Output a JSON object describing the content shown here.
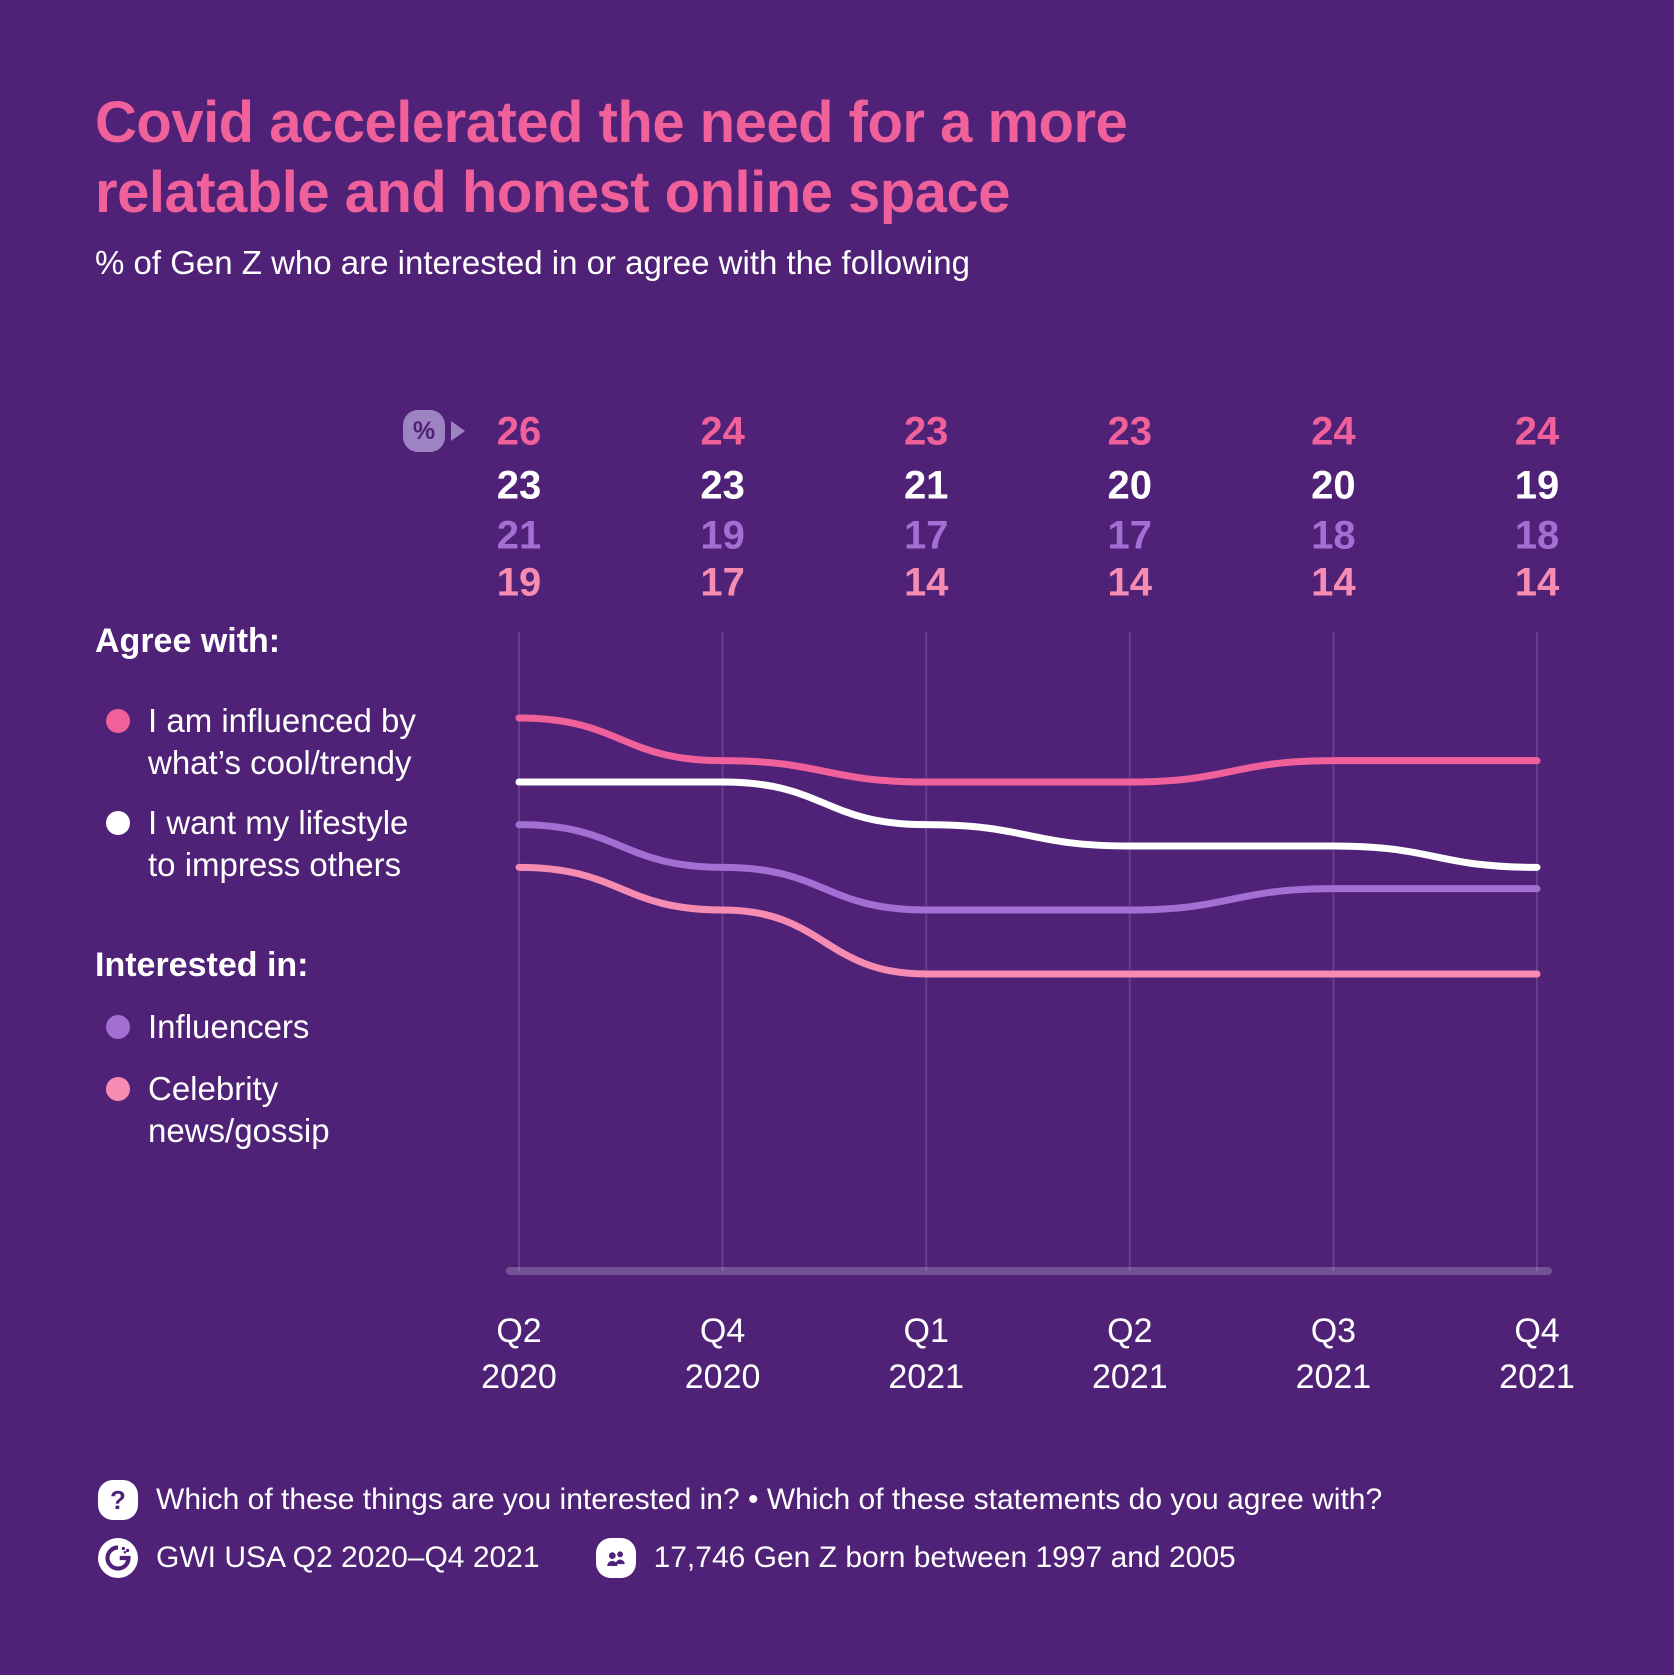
{
  "colors": {
    "background": "#4F2277",
    "title_pink": "#F0609A",
    "badge_lavender": "#9D83C1",
    "grid_line": "rgba(255,255,255,0.13)",
    "axis_baseline": "rgba(255,255,255,0.22)",
    "text_white": "#FFFFFF"
  },
  "header": {
    "title_lines": [
      "Covid accelerated the need for a more",
      "relatable and honest online space"
    ],
    "subtitle": "% of Gen Z who are interested in or agree with the following"
  },
  "percent_badge": {
    "label": "%"
  },
  "legend": {
    "agree_heading": "Agree with:",
    "interested_heading": "Interested in:"
  },
  "chart_data": {
    "type": "line",
    "title": "Covid accelerated the need for a more relatable and honest online space",
    "subtitle": "% of Gen Z who are interested in or agree with the following",
    "value_unit": "%",
    "categories": [
      "Q2 2020",
      "Q4 2020",
      "Q1 2021",
      "Q2 2021",
      "Q3 2021",
      "Q4 2021"
    ],
    "series": [
      {
        "name": "I am influenced by what’s cool/trendy",
        "group": "Agree with:",
        "label_lines": [
          "I am influenced by",
          "what’s cool/trendy"
        ],
        "color": "#F0609A",
        "values": [
          26,
          24,
          23,
          23,
          24,
          24
        ]
      },
      {
        "name": "I want my lifestyle to impress others",
        "group": "Agree with:",
        "label_lines": [
          "I want my lifestyle",
          "to impress others"
        ],
        "color": "#FFFFFF",
        "values": [
          23,
          23,
          21,
          20,
          20,
          19
        ]
      },
      {
        "name": "Influencers",
        "group": "Interested in:",
        "label_lines": [
          "Influencers"
        ],
        "color": "#A26FD3",
        "values": [
          21,
          19,
          17,
          17,
          18,
          18
        ]
      },
      {
        "name": "Celebrity news/gossip",
        "group": "Interested in:",
        "label_lines": [
          "Celebrity",
          "news/gossip"
        ],
        "color": "#F78CB2",
        "values": [
          19,
          17,
          14,
          14,
          14,
          14
        ]
      }
    ],
    "layout": {
      "grid": "vertical-only",
      "legend_position": "left",
      "value_labels": "top-rows",
      "y_axis_ticks": "hidden"
    }
  },
  "footer": {
    "question": "Which of these things are you interested in? • Which of these statements do you agree with?",
    "source": "GWI USA Q2 2020–Q4 2021",
    "sample": "17,746 Gen Z born between 1997 and 2005"
  }
}
